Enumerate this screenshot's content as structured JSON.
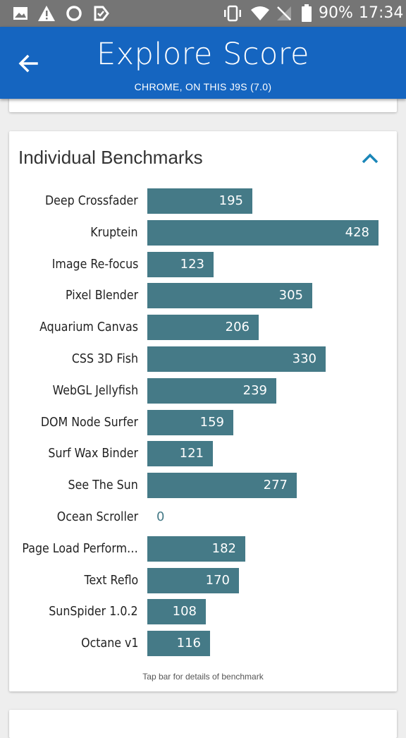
{
  "status_bar": {
    "battery_percent": "90%",
    "time": "17:34"
  },
  "header": {
    "title": "Explore Score",
    "subtitle": "CHROME, ON THIS J9S (7.0)"
  },
  "benchmarks": {
    "title": "Individual Benchmarks",
    "footnote": "Tap bar for details of benchmark",
    "max_value": 428,
    "items": [
      {
        "label": "Deep Crossfader",
        "value": 195
      },
      {
        "label": "Kruptein",
        "value": 428
      },
      {
        "label": "Image Re-focus",
        "value": 123
      },
      {
        "label": "Pixel Blender",
        "value": 305
      },
      {
        "label": "Aquarium Canvas",
        "value": 206
      },
      {
        "label": "CSS 3D Fish",
        "value": 330
      },
      {
        "label": "WebGL Jellyfish",
        "value": 239
      },
      {
        "label": "DOM Node Surfer",
        "value": 159
      },
      {
        "label": "Surf Wax Binder",
        "value": 121
      },
      {
        "label": "See The Sun",
        "value": 277
      },
      {
        "label": "Ocean Scroller",
        "value": 0
      },
      {
        "label": "Page Load Perform…",
        "value": 182
      },
      {
        "label": "Text Reflo",
        "value": 170
      },
      {
        "label": "SunSpider 1.0.2",
        "value": 108
      },
      {
        "label": "Octane v1",
        "value": 116
      }
    ]
  },
  "colors": {
    "app_bar": "#1565c0",
    "bar": "#457a87",
    "accent_chevron": "#1a86b8"
  }
}
